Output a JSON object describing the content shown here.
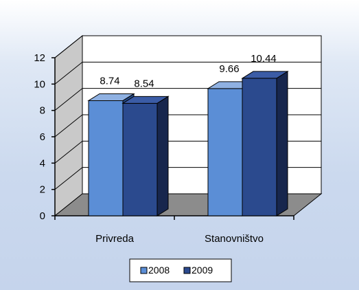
{
  "chart_data": {
    "type": "bar",
    "categories": [
      "Privreda",
      "Stanovništvo"
    ],
    "series": [
      {
        "name": "2008",
        "values": [
          8.74,
          9.66
        ],
        "color": "#5b8ed6"
      },
      {
        "name": "2009",
        "values": [
          8.54,
          10.44
        ],
        "color": "#2b4a8e"
      }
    ],
    "data_labels": [
      [
        "8.74",
        "9.66"
      ],
      [
        "8.54",
        "10.44"
      ]
    ],
    "yticks": [
      "0",
      "2",
      "4",
      "6",
      "8",
      "10",
      "12"
    ],
    "ylim": [
      0,
      12
    ],
    "grid": true,
    "legend_position": "bottom",
    "three_d": true,
    "colors": {
      "wall": "#ffffff",
      "side_wall": "#c9c9c9",
      "floor": "#8c8c8c",
      "series_2008_side": "#244a8a",
      "series_2008_top": "#8fb1e2",
      "series_2009_side": "#17264d",
      "series_2009_top": "#3b5ca6"
    }
  }
}
